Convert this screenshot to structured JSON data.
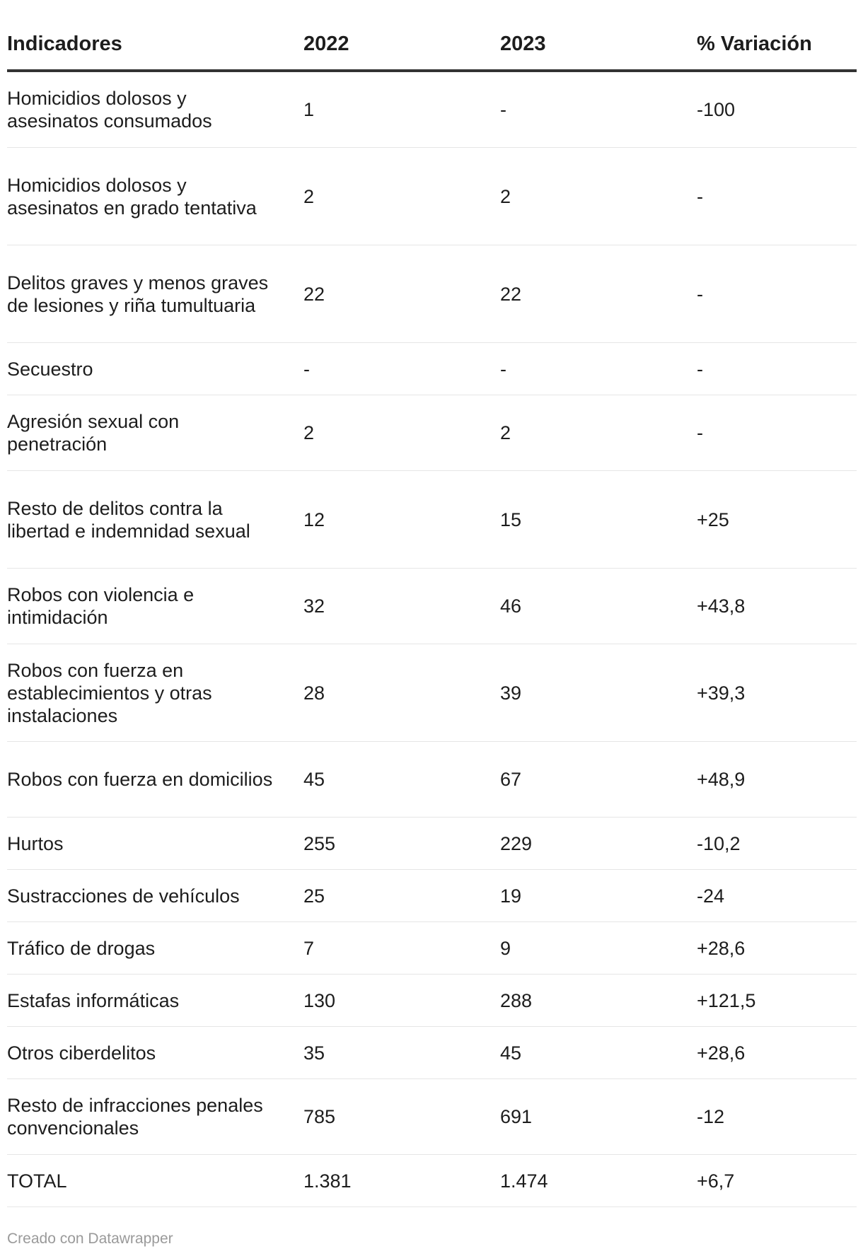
{
  "chart_data": {
    "type": "table",
    "columns": [
      "Indicadores",
      "2022",
      "2023",
      "% Variación"
    ],
    "rows": [
      [
        "Homicidios dolosos y asesinatos consumados",
        "1",
        "-",
        "-100"
      ],
      [
        "Homicidios dolosos y asesinatos en grado tentativa",
        "2",
        "2",
        "-"
      ],
      [
        "Delitos graves y menos graves de lesiones y riña tumultuaria",
        "22",
        "22",
        "-"
      ],
      [
        "Secuestro",
        "-",
        "-",
        "-"
      ],
      [
        "Agresión sexual con penetración",
        "2",
        "2",
        "-"
      ],
      [
        "Resto de delitos contra la libertad e indemnidad sexual",
        "12",
        "15",
        "+25"
      ],
      [
        "Robos con violencia e intimidación",
        "32",
        "46",
        "+43,8"
      ],
      [
        "Robos con fuerza en establecimientos y otras instalaciones",
        "28",
        "39",
        "+39,3"
      ],
      [
        "Robos con fuerza en domicilios",
        "45",
        "67",
        "+48,9"
      ],
      [
        "Hurtos",
        "255",
        "229",
        "-10,2"
      ],
      [
        "Sustracciones de vehículos",
        "25",
        "19",
        "-24"
      ],
      [
        "Tráfico de drogas",
        "7",
        "9",
        "+28,6"
      ],
      [
        "Estafas informáticas",
        "130",
        "288",
        "+121,5"
      ],
      [
        "Otros ciberdelitos",
        "35",
        "45",
        "+28,6"
      ],
      [
        "Resto de infracciones penales convencionales",
        "785",
        "691",
        "-12"
      ],
      [
        "TOTAL",
        "1.381",
        "1.474",
        "+6,7"
      ]
    ]
  },
  "footer": "Creado con Datawrapper",
  "colors": {
    "text": "#1d1d1d",
    "header_rule": "#333333",
    "row_rule": "#e6e6e6",
    "footer_text": "#9a9a9a"
  }
}
